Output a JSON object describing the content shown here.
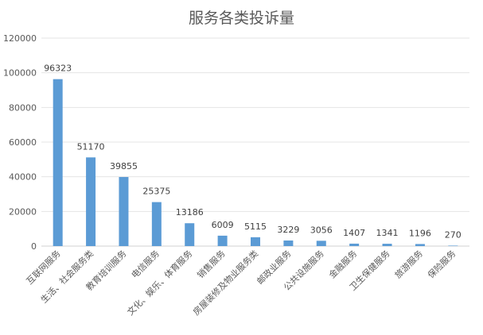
{
  "chart_data": {
    "type": "bar",
    "title": "服务各类投诉量",
    "xlabel": "",
    "ylabel": "",
    "ylim": [
      0,
      120000
    ],
    "yticks": [
      0,
      20000,
      40000,
      60000,
      80000,
      100000,
      120000
    ],
    "grid": true,
    "legend": "none",
    "bar_color": "#5B9BD5",
    "categories": [
      "互联网服务",
      "生活、社会服务类",
      "教育培训服务",
      "电信服务",
      "文化、娱乐、体育服务",
      "销售服务",
      "房屋装修及物业服务类",
      "邮政业服务",
      "公共设施服务",
      "金融服务",
      "卫生保健服务",
      "旅游服务",
      "保险服务"
    ],
    "values": [
      96323,
      51170,
      39855,
      25375,
      13186,
      6009,
      5115,
      3229,
      3056,
      1407,
      1341,
      1196,
      270
    ]
  }
}
